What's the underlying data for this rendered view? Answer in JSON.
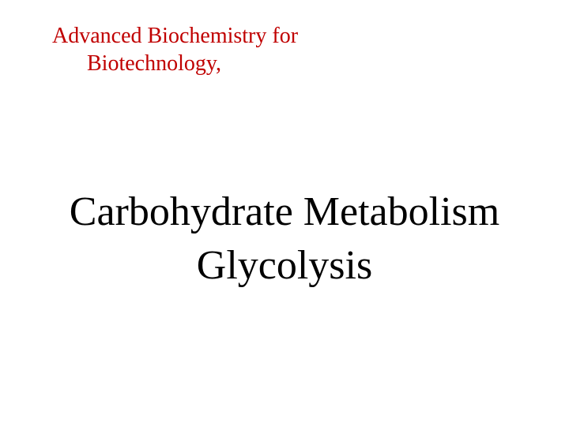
{
  "header": {
    "line1": "Advanced Biochemistry for",
    "line2": "Biotechnology,",
    "color": "#c00000",
    "fontsize": 28
  },
  "title": {
    "line1": "Carbohydrate Metabolism",
    "line2": "Glycolysis",
    "color": "#000000",
    "fontsize": 52
  },
  "background_color": "#ffffff"
}
